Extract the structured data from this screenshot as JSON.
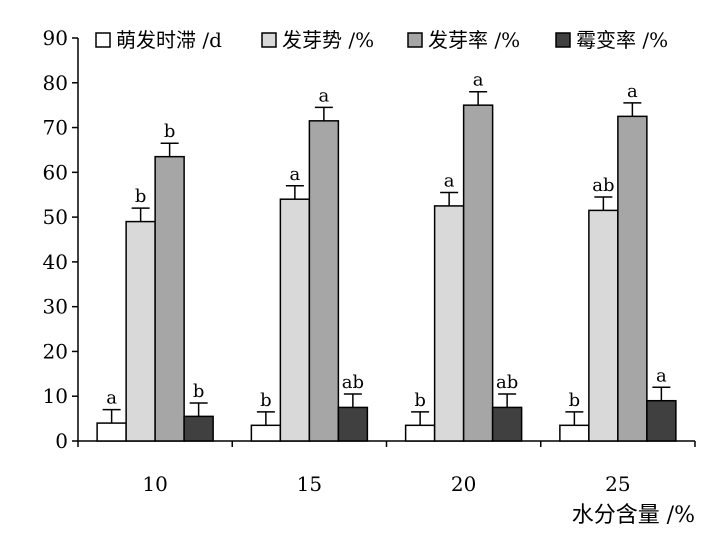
{
  "chart_data": {
    "type": "bar",
    "categories": [
      "10",
      "15",
      "20",
      "25"
    ],
    "xlabel": "水分含量 /%",
    "ylabel": "",
    "title": "",
    "ylim": [
      0,
      90
    ],
    "yticks": [
      0,
      10,
      20,
      30,
      40,
      50,
      60,
      70,
      80,
      90
    ],
    "grid": false,
    "legend_position": "top",
    "series": [
      {
        "name": "萌发时滞 /d",
        "color": "#ffffff",
        "values": [
          4.0,
          3.5,
          3.5,
          3.5
        ],
        "errors": [
          3.0,
          3.0,
          3.0,
          3.0
        ],
        "labels": [
          "a",
          "b",
          "b",
          "b"
        ]
      },
      {
        "name": "发芽势 /%",
        "color": "#d9d9d9",
        "values": [
          49.0,
          54.0,
          52.5,
          51.5
        ],
        "errors": [
          3.0,
          3.0,
          3.0,
          3.0
        ],
        "labels": [
          "b",
          "a",
          "a",
          "ab"
        ]
      },
      {
        "name": "发芽率 /%",
        "color": "#a6a6a6",
        "values": [
          63.5,
          71.5,
          75.0,
          72.5
        ],
        "errors": [
          3.0,
          3.0,
          3.0,
          3.0
        ],
        "labels": [
          "b",
          "a",
          "a",
          "a"
        ]
      },
      {
        "name": "霉变率 /%",
        "color": "#404040",
        "values": [
          5.5,
          7.5,
          7.5,
          9.0
        ],
        "errors": [
          3.0,
          3.0,
          3.0,
          3.0
        ],
        "labels": [
          "b",
          "ab",
          "ab",
          "a"
        ]
      }
    ]
  }
}
